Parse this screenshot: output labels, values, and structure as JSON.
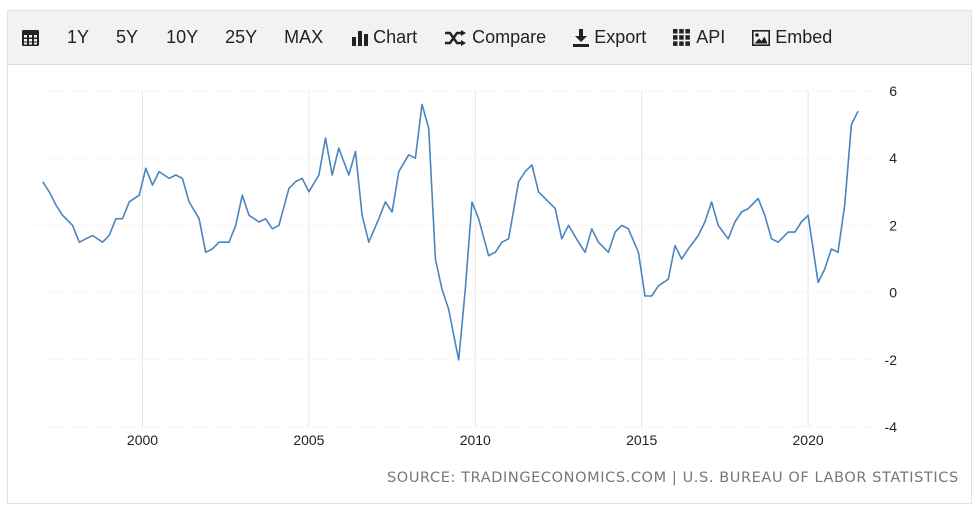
{
  "toolbar": {
    "ranges": [
      "1Y",
      "5Y",
      "10Y",
      "25Y",
      "MAX"
    ],
    "chart_label": "Chart",
    "compare_label": "Compare",
    "export_label": "Export",
    "api_label": "API",
    "embed_label": "Embed",
    "icons": [
      "calendar-icon",
      "bar-chart-icon",
      "shuffle-icon",
      "download-icon",
      "grid-icon",
      "image-icon"
    ]
  },
  "source": "SOURCE: TRADINGECONOMICS.COM | U.S. BUREAU OF LABOR STATISTICS",
  "colors": {
    "line": "#4a85bf",
    "grid": "#e6e6e6",
    "toolbar": "#f2f2f2"
  },
  "chart_data": {
    "type": "line",
    "title": "",
    "xlabel": "",
    "ylabel": "",
    "x_ticks": [
      "2000",
      "2005",
      "2010",
      "2015",
      "2020"
    ],
    "y_ticks": [
      6,
      4,
      2,
      0,
      -2,
      -4
    ],
    "ylim": [
      -4,
      6
    ],
    "xlim": [
      1996.8,
      2021.8
    ],
    "y_axis_side": "right",
    "grid": true,
    "legend": "none",
    "series": [
      {
        "x": [
          1997.0,
          1997.2,
          1997.4,
          1997.6,
          1997.9,
          1998.1,
          1998.3,
          1998.5,
          1998.8,
          1999.0,
          1999.2,
          1999.4,
          1999.6,
          1999.9,
          2000.1,
          2000.3,
          2000.5,
          2000.8,
          2001.0,
          2001.2,
          2001.4,
          2001.7,
          2001.9,
          2002.1,
          2002.3,
          2002.6,
          2002.8,
          2003.0,
          2003.2,
          2003.5,
          2003.7,
          2003.9,
          2004.1,
          2004.4,
          2004.6,
          2004.8,
          2005.0,
          2005.3,
          2005.5,
          2005.7,
          2005.9,
          2006.2,
          2006.4,
          2006.6,
          2006.8,
          2007.1,
          2007.3,
          2007.5,
          2007.7,
          2008.0,
          2008.2,
          2008.4,
          2008.6,
          2008.8,
          2009.0,
          2009.2,
          2009.4,
          2009.5,
          2009.7,
          2009.9,
          2010.1,
          2010.4,
          2010.6,
          2010.8,
          2011.0,
          2011.3,
          2011.5,
          2011.7,
          2011.9,
          2012.2,
          2012.4,
          2012.6,
          2012.8,
          2013.1,
          2013.3,
          2013.5,
          2013.7,
          2014.0,
          2014.2,
          2014.4,
          2014.6,
          2014.9,
          2015.1,
          2015.3,
          2015.5,
          2015.8,
          2016.0,
          2016.2,
          2016.4,
          2016.7,
          2016.9,
          2017.1,
          2017.3,
          2017.6,
          2017.8,
          2018.0,
          2018.2,
          2018.5,
          2018.7,
          2018.9,
          2019.1,
          2019.4,
          2019.6,
          2019.8,
          2020.0,
          2020.3,
          2020.5,
          2020.7,
          2020.9,
          2021.1,
          2021.3,
          2021.5
        ],
        "y": [
          3.3,
          3.0,
          2.6,
          2.3,
          2.0,
          1.5,
          1.6,
          1.7,
          1.5,
          1.7,
          2.2,
          2.2,
          2.7,
          2.9,
          3.7,
          3.2,
          3.6,
          3.4,
          3.5,
          3.4,
          2.7,
          2.2,
          1.2,
          1.3,
          1.5,
          1.5,
          2.0,
          2.9,
          2.3,
          2.1,
          2.2,
          1.9,
          2.0,
          3.1,
          3.3,
          3.4,
          3.0,
          3.5,
          4.6,
          3.5,
          4.3,
          3.5,
          4.2,
          2.3,
          1.5,
          2.2,
          2.7,
          2.4,
          3.6,
          4.1,
          4.0,
          5.6,
          4.9,
          1.0,
          0.1,
          -0.5,
          -1.5,
          -2.0,
          0.1,
          2.7,
          2.2,
          1.1,
          1.2,
          1.5,
          1.6,
          3.3,
          3.6,
          3.8,
          3.0,
          2.7,
          2.5,
          1.6,
          2.0,
          1.5,
          1.2,
          1.9,
          1.5,
          1.2,
          1.8,
          2.0,
          1.9,
          1.2,
          -0.1,
          -0.1,
          0.2,
          0.4,
          1.4,
          1.0,
          1.3,
          1.7,
          2.1,
          2.7,
          2.0,
          1.6,
          2.1,
          2.4,
          2.5,
          2.8,
          2.3,
          1.6,
          1.5,
          1.8,
          1.8,
          2.1,
          2.3,
          0.3,
          0.7,
          1.3,
          1.2,
          2.6,
          5.0,
          5.4
        ]
      }
    ]
  }
}
